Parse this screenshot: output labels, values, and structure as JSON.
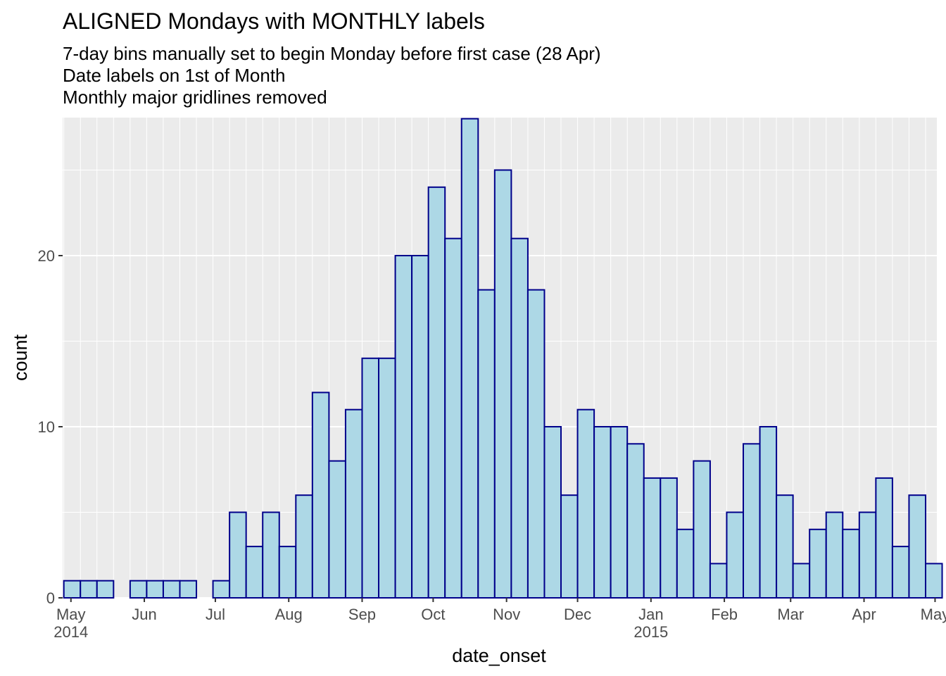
{
  "chart_data": {
    "type": "bar",
    "title": "ALIGNED Mondays with MONTHLY labels",
    "subtitle_lines": [
      "7-day bins manually set to begin Monday before first case (28 Apr)",
      "Date labels on 1st of Month",
      "Monthly major gridlines removed"
    ],
    "xlabel": "date_onset",
    "ylabel": "count",
    "bin_days": 7,
    "first_bin_start": "2014-04-28",
    "x_ticks": [
      {
        "date": "2014-05-01",
        "label": "May",
        "year": "2014"
      },
      {
        "date": "2014-06-01",
        "label": "Jun",
        "year": ""
      },
      {
        "date": "2014-07-01",
        "label": "Jul",
        "year": ""
      },
      {
        "date": "2014-08-01",
        "label": "Aug",
        "year": ""
      },
      {
        "date": "2014-09-01",
        "label": "Sep",
        "year": ""
      },
      {
        "date": "2014-10-01",
        "label": "Oct",
        "year": ""
      },
      {
        "date": "2014-11-01",
        "label": "Nov",
        "year": ""
      },
      {
        "date": "2014-12-01",
        "label": "Dec",
        "year": ""
      },
      {
        "date": "2015-01-01",
        "label": "Jan",
        "year": "2015"
      },
      {
        "date": "2015-02-01",
        "label": "Feb",
        "year": ""
      },
      {
        "date": "2015-03-01",
        "label": "Mar",
        "year": ""
      },
      {
        "date": "2015-04-01",
        "label": "Apr",
        "year": ""
      },
      {
        "date": "2015-05-01",
        "label": "May",
        "year": ""
      }
    ],
    "y_ticks": [
      0,
      10,
      20
    ],
    "ylim": [
      0,
      28
    ],
    "values": [
      1,
      1,
      1,
      0,
      1,
      1,
      1,
      1,
      0,
      1,
      5,
      3,
      5,
      3,
      6,
      12,
      8,
      11,
      14,
      14,
      20,
      20,
      24,
      21,
      28,
      18,
      25,
      21,
      18,
      10,
      6,
      11,
      10,
      10,
      9,
      7,
      7,
      4,
      8,
      2,
      5,
      9,
      10,
      6,
      2,
      4,
      5,
      4,
      5,
      7,
      3,
      6,
      2
    ],
    "colors": {
      "bar_fill": "#add8e6",
      "bar_outline": "#00008b",
      "panel_bg": "#ebebeb",
      "grid": "#ffffff",
      "tick_text": "#4d4d4d",
      "tick_mark": "#333333"
    }
  }
}
